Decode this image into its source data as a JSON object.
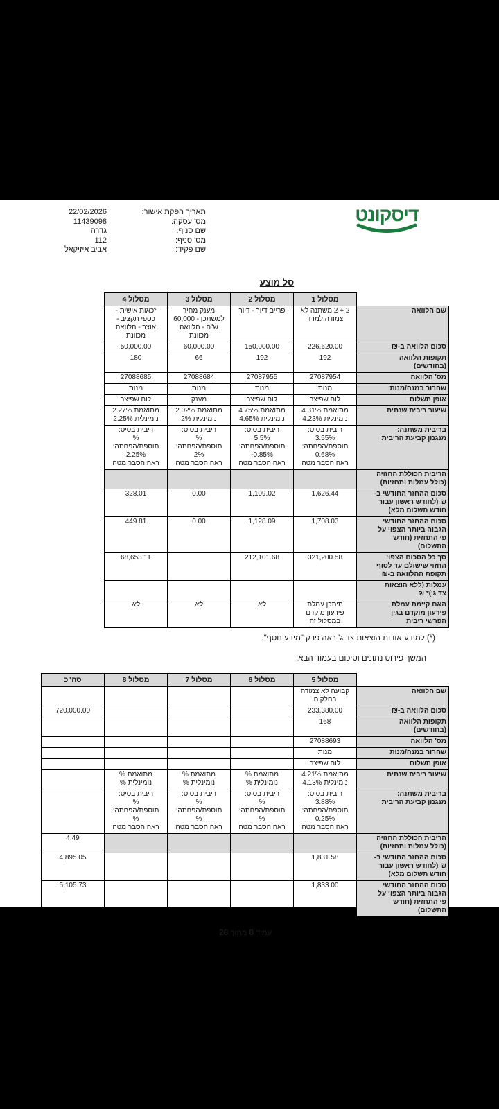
{
  "logo": {
    "text": "דיסקונט"
  },
  "header_fields": [
    {
      "label": "תאריך הפקת אישור:",
      "value": "22/02/2026"
    },
    {
      "label": "מס' עסקה:",
      "value": "11439098"
    },
    {
      "label": "שם סניף:",
      "value": "גדרה"
    },
    {
      "label": "מס' סניף:",
      "value": "112"
    },
    {
      "label": "שם פקיד:",
      "value": "אביב איזיקאל"
    }
  ],
  "title": "סל מוצע",
  "table1": {
    "columns": [
      "מסלול 1",
      "מסלול 2",
      "מסלול 3",
      "מסלול 4"
    ],
    "rows": [
      {
        "label": "שם הלוואה",
        "cells": [
          "2 + 2 משתנה לא\nצמודה למדד",
          "פריים דיור - דיור",
          "מענק מחיר\nלמשתכן - 60,000\nש\"ח - הלוואה\nמכוונת",
          "זכאות אישית -\nכספי תקציב -\nאוצר - הלוואה\nמכוונת"
        ]
      },
      {
        "label": "סכום הלוואה ב-₪",
        "cells": [
          "226,620.00",
          "150,000.00",
          "60,000.00",
          "50,000.00"
        ]
      },
      {
        "label": "תקופות הלוואה\n(בחודשים)",
        "cells": [
          "192",
          "192",
          "66",
          "180"
        ]
      },
      {
        "label": "מס' הלוואה",
        "cells": [
          "27087954",
          "27087955",
          "27088684",
          "27088685"
        ]
      },
      {
        "label": "שחרור במנה/מנות",
        "cells": [
          "מנות",
          "מנות",
          "מנות",
          "מנות"
        ]
      },
      {
        "label": "אופן תשלום",
        "cells": [
          "לוח שפיצר",
          "לוח שפיצר",
          "מענק",
          "לוח שפיצר"
        ]
      },
      {
        "label": "שיעור ריבית שנתית",
        "cells": [
          "מתואמת 4.31%\nנומינלית 4.23%",
          "מתואמת 4.75%\nנומינלית 4.65%",
          "מתואמת 2.02%\nנומינלית 2%",
          "מתואמת 2.27%\nנומינלית 2.25%"
        ]
      },
      {
        "label": "בריבית משתנה:\nמנגנון קביעת הריבית",
        "cells": [
          "ריבית בסיס:\n3.55%\nתוספת/הפחתה:\n0.68%\nראה הסבר מטה",
          "ריבית בסיס:\n5.5%\nתוספת/הפחתה:\n‎-0.85%\nראה הסבר מטה",
          "ריבית בסיס:\n%\nתוספת/הפחתה:\n2%\nראה הסבר מטה",
          "ריבית בסיס:\n%\nתוספת/הפחתה:\n2.25%\nראה הסבר מטה"
        ]
      },
      {
        "label": "הריבית הכוללת החזויה\n(כולל עמלות ותחזיות)",
        "cells": [
          "",
          "",
          "",
          ""
        ],
        "gray": [
          true,
          true,
          true,
          true
        ]
      },
      {
        "label": "סכום ההחזר החודשי ב-\n₪ (לחודש ראשון עבור\nחודש תשלום מלא)",
        "cells": [
          "1,626.44",
          "1,109.02",
          "0.00",
          "328.01"
        ]
      },
      {
        "label": "סכום ההחזר החודשי\nהגבוה ביותר הצפוי על\nפי התחזית (חודש\nהתשלום)",
        "cells": [
          "1,708.03",
          "1,128.09",
          "0.00",
          "449.81"
        ]
      },
      {
        "label": "סך כל הסכום הצפוי\nהחזוי שישולם עד לסוף\nתקופת ההלוואה ב-₪",
        "cells": [
          "321,200.58",
          "212,101.68",
          "",
          "68,653.11"
        ]
      },
      {
        "label": "עמלות (ללא הוצאות\nצד ג')* ₪",
        "cells": [
          "",
          "",
          "",
          ""
        ]
      },
      {
        "label": "האם קיימת עמלת\nפירעון מוקדם בגין\nהפרשי ריבית",
        "cells": [
          "תיתכן עמלת\nפירעון מוקדם\nבמסלול זה",
          "לא",
          "לא",
          "לא"
        ],
        "italic": [
          false,
          true,
          true,
          true
        ]
      }
    ]
  },
  "footnote": "(*) למידע אודות הוצאות צד ג' ראה פרק \"מידע נוסף\".",
  "continuation": "המשך פירוט נתונים וסיכום בעמוד הבא.",
  "table2": {
    "columns": [
      "מסלול 5",
      "מסלול 6",
      "מסלול 7",
      "מסלול 8",
      "סה\"כ"
    ],
    "rows": [
      {
        "label": "שם הלוואה",
        "cells": [
          "קבועה לא צמודה\nבחלקים",
          "",
          "",
          "",
          ""
        ]
      },
      {
        "label": "סכום הלוואה ב-₪",
        "cells": [
          "233,380.00",
          "",
          "",
          "",
          "720,000.00"
        ]
      },
      {
        "label": "תקופות הלוואה\n(בחודשים)",
        "cells": [
          "168",
          "",
          "",
          "",
          ""
        ]
      },
      {
        "label": "מס' הלוואה",
        "cells": [
          "27088693",
          "",
          "",
          "",
          ""
        ]
      },
      {
        "label": "שחרור במנה/מנות",
        "cells": [
          "מנות",
          "",
          "",
          "",
          ""
        ]
      },
      {
        "label": "אופן תשלום",
        "cells": [
          "לוח שפיצר",
          "",
          "",
          "",
          ""
        ]
      },
      {
        "label": "שיעור ריבית שנתית",
        "cells": [
          "מתואמת 4.21%\nנומינלית 4.13%",
          "מתואמת %\nנומינלית %",
          "מתואמת %\nנומינלית %",
          "מתואמת %\nנומינלית %",
          ""
        ]
      },
      {
        "label": "בריבית משתנה:\nמנגנון קביעת הריבית",
        "cells": [
          "ריבית בסיס:\n3.88%\nתוספת/הפחתה:\n0.25%\nראה הסבר מטה",
          "ריבית בסיס:\n%\nתוספת/הפחתה:\n%\nראה הסבר מטה",
          "ריבית בסיס:\n%\nתוספת/הפחתה:\n%\nראה הסבר מטה",
          "ריבית בסיס:\n%\nתוספת/הפחתה:\n%\nראה הסבר מטה",
          ""
        ]
      },
      {
        "label": "הריבית הכוללת החזויה\n(כולל עמלות ותחזיות)",
        "cells": [
          "",
          "",
          "",
          "",
          "4.49"
        ],
        "gray": [
          true,
          true,
          true,
          true,
          false
        ]
      },
      {
        "label": "סכום ההחזר החודשי ב-\n₪ (לחודש ראשון עבור\nחודש תשלום מלא)",
        "cells": [
          "1,831.58",
          "",
          "",
          "",
          "4,895.05"
        ]
      },
      {
        "label": "סכום ההחזר החודשי\nהגבוה ביותר הצפוי על\nפי התחזית (חודש\nהתשלום)",
        "cells": [
          "1,833.00",
          "",
          "",
          "",
          "5,105.73"
        ]
      }
    ]
  },
  "footer": {
    "word1": "עמוד",
    "page": "8",
    "word2": "מתוך",
    "total": "28"
  }
}
